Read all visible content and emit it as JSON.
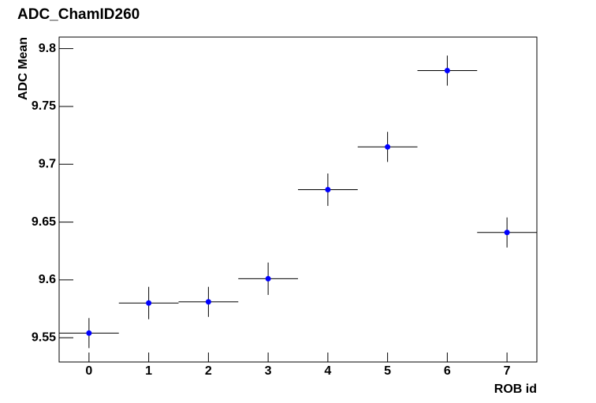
{
  "chart_data": {
    "type": "scatter",
    "title": "ADC_ChamID260",
    "x_label": "ROB id",
    "y_label": "ADC Mean",
    "x": [
      0,
      1,
      2,
      3,
      4,
      5,
      6,
      7
    ],
    "values": [
      9.554,
      9.58,
      9.581,
      9.601,
      9.678,
      9.715,
      9.781,
      9.641
    ],
    "errors": [
      0.013,
      0.014,
      0.013,
      0.014,
      0.014,
      0.013,
      0.013,
      0.013
    ],
    "x_errors": [
      0.5,
      0.5,
      0.5,
      0.5,
      0.5,
      0.5,
      0.5,
      0.5
    ],
    "color": "#0000ff",
    "xlim": [
      -0.5,
      7.5
    ],
    "xticks": [
      0,
      1,
      2,
      3,
      4,
      5,
      6,
      7
    ],
    "ylim": [
      9.529,
      9.81
    ],
    "yticks": [
      9.55,
      9.6,
      9.65,
      9.7,
      9.75,
      9.8
    ]
  }
}
